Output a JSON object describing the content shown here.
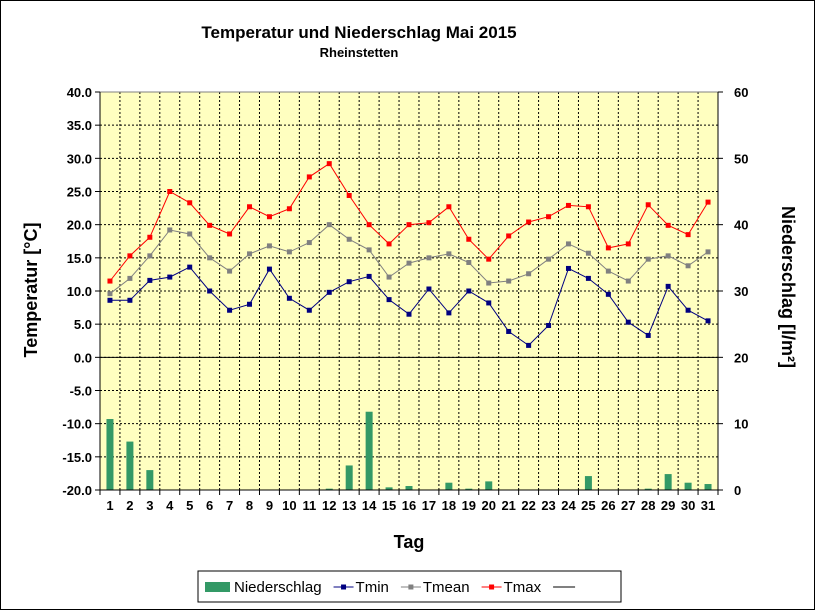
{
  "chart_data": {
    "type": "line",
    "title": "Temperatur und Niederschlag  Mai 2015",
    "subtitle": "Rheinstetten",
    "xlabel": "Tag",
    "ylabel": "Temperatur [°C]",
    "y2label": "Niederschlag [l/m²]",
    "ylim": [
      -20,
      40
    ],
    "y2lim": [
      0,
      60
    ],
    "yticks": [
      "40.0",
      "35.0",
      "30.0",
      "25.0",
      "20.0",
      "15.0",
      "10.0",
      "5.0",
      "0.0",
      "-5.0",
      "-10.0",
      "-15.0",
      "-20.0"
    ],
    "y2ticks": [
      "60",
      "50",
      "40",
      "30",
      "20",
      "10",
      "0"
    ],
    "x": [
      "1",
      "2",
      "3",
      "4",
      "5",
      "6",
      "7",
      "8",
      "9",
      "10",
      "11",
      "12",
      "13",
      "14",
      "15",
      "16",
      "17",
      "18",
      "19",
      "20",
      "21",
      "22",
      "23",
      "24",
      "25",
      "26",
      "27",
      "28",
      "29",
      "30",
      "31"
    ],
    "grid": true,
    "legend_position": "bottom",
    "series": [
      {
        "name": "Niederschlag",
        "type": "bar",
        "axis": "y2",
        "color": "#339966",
        "values": [
          10.7,
          7.3,
          3.0,
          0,
          0,
          0,
          0,
          0,
          0,
          0,
          0,
          0.2,
          3.7,
          11.8,
          0.4,
          0.6,
          0,
          1.1,
          0.2,
          1.3,
          0,
          0,
          0,
          0,
          2.1,
          0,
          0,
          0.2,
          2.4,
          1.1,
          0.9
        ]
      },
      {
        "name": "Tmin",
        "type": "line",
        "axis": "y",
        "color": "#000080",
        "values": [
          8.6,
          8.6,
          11.6,
          12.1,
          13.6,
          10.0,
          7.1,
          8.0,
          13.3,
          8.9,
          7.1,
          9.8,
          11.4,
          12.2,
          8.7,
          6.5,
          10.3,
          6.7,
          10.0,
          8.2,
          3.9,
          1.8,
          4.8,
          13.4,
          11.9,
          9.5,
          5.3,
          3.3,
          10.7,
          7.1,
          5.5
        ]
      },
      {
        "name": "Tmean",
        "type": "line",
        "axis": "y",
        "color": "#808080",
        "values": [
          9.6,
          11.9,
          15.3,
          19.2,
          18.6,
          15.0,
          13.0,
          15.6,
          16.8,
          15.9,
          17.3,
          20.0,
          17.8,
          16.2,
          12.1,
          14.2,
          15.0,
          15.6,
          14.3,
          11.2,
          11.5,
          12.6,
          14.8,
          17.1,
          15.7,
          13.0,
          11.5,
          14.8,
          15.3,
          13.8,
          15.9
        ]
      },
      {
        "name": "Tmax",
        "type": "line",
        "axis": "y",
        "color": "#ff0000",
        "values": [
          11.5,
          15.3,
          18.1,
          25.0,
          23.3,
          19.9,
          18.6,
          22.7,
          21.2,
          22.4,
          27.2,
          29.2,
          24.4,
          20.0,
          17.1,
          20.0,
          20.3,
          22.7,
          17.8,
          14.8,
          18.3,
          20.4,
          21.2,
          22.9,
          22.7,
          16.5,
          17.1,
          23.0,
          19.9,
          18.5,
          23.4
        ]
      },
      {
        "name": "",
        "type": "legend-line",
        "color": "#000000"
      }
    ]
  }
}
